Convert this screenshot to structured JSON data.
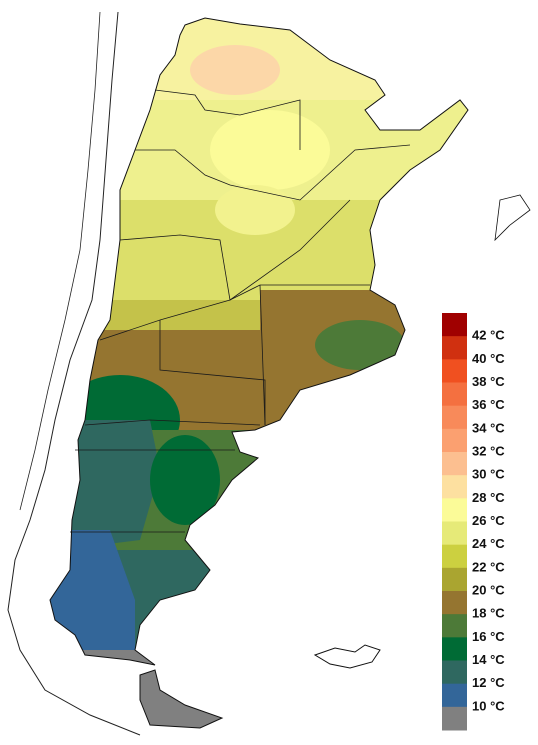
{
  "legend": {
    "labels": [
      "42 °C",
      "40 °C",
      "38 °C",
      "36 °C",
      "34 °C",
      "32 °C",
      "30 °C",
      "28 °C",
      "26 °C",
      "24 °C",
      "22 °C",
      "20 °C",
      "18 °C",
      "16 °C",
      "14 °C",
      "12 °C",
      "10 °C"
    ],
    "colors": [
      "#a00000",
      "#d03010",
      "#f05020",
      "#f47040",
      "#f88a5a",
      "#fba070",
      "#fcbf90",
      "#fde0a0",
      "#fbfb98",
      "#e6ea78",
      "#ccd040",
      "#aaa530",
      "#957530",
      "#4d7a38",
      "#006b35",
      "#2f6860",
      "#336699",
      "#808080"
    ]
  }
}
